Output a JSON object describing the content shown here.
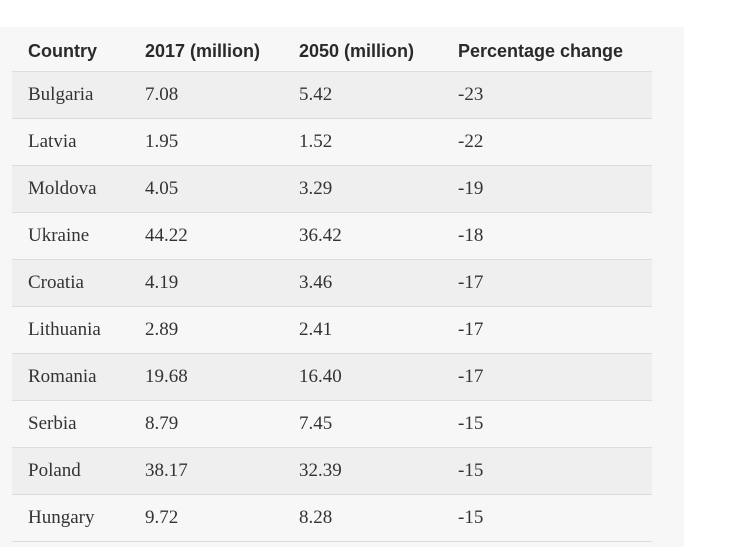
{
  "table": {
    "headers": [
      "Country",
      "2017 (million)",
      "2050 (million)",
      "Percentage change"
    ],
    "rows": [
      [
        "Bulgaria",
        "7.08",
        "5.42",
        "-23"
      ],
      [
        "Latvia",
        "1.95",
        "1.52",
        "-22"
      ],
      [
        "Moldova",
        "4.05",
        "3.29",
        "-19"
      ],
      [
        "Ukraine",
        "44.22",
        "36.42",
        "-18"
      ],
      [
        "Croatia",
        "4.19",
        "3.46",
        "-17"
      ],
      [
        "Lithuania",
        "2.89",
        "2.41",
        "-17"
      ],
      [
        "Romania",
        "19.68",
        "16.40",
        "-17"
      ],
      [
        "Serbia",
        "8.79",
        "7.45",
        "-15"
      ],
      [
        "Poland",
        "38.17",
        "32.39",
        "-15"
      ],
      [
        "Hungary",
        "9.72",
        "8.28",
        "-15"
      ]
    ]
  },
  "colors": {
    "panel_background": "#f7f7f7",
    "alternate_row": "#efefef",
    "row_border": "#dcdcdc",
    "text": "#333333"
  }
}
